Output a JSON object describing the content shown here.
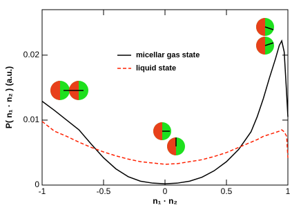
{
  "chart_data": {
    "type": "line",
    "xlabel": "n₁ · n₂",
    "ylabel": "P( n₁ · n₂ )  (a.u.)",
    "x": [
      -1,
      -0.9,
      -0.8,
      -0.7,
      -0.6,
      -0.5,
      -0.4,
      -0.3,
      -0.2,
      -0.1,
      0,
      0.1,
      0.2,
      0.3,
      0.4,
      0.5,
      0.6,
      0.7,
      0.75,
      0.8,
      0.85,
      0.9,
      0.93,
      0.95,
      0.97,
      0.99,
      1
    ],
    "series": [
      {
        "name": "micellar gas state",
        "color": "#000000",
        "dash": false,
        "values": [
          0.0129,
          0.0115,
          0.01,
          0.0085,
          0.0063,
          0.0042,
          0.0025,
          0.0013,
          0.0006,
          0.0003,
          0.0002,
          0.0003,
          0.0006,
          0.0012,
          0.0022,
          0.0036,
          0.0055,
          0.0082,
          0.0105,
          0.0133,
          0.0165,
          0.0195,
          0.0215,
          0.0222,
          0.0205,
          0.014,
          0.0105
        ]
      },
      {
        "name": "liquid state",
        "color": "#ff2000",
        "dash": true,
        "values": [
          0.0098,
          0.0083,
          0.0075,
          0.0066,
          0.0058,
          0.0051,
          0.0045,
          0.004,
          0.0036,
          0.0034,
          0.0032,
          0.0033,
          0.0036,
          0.0039,
          0.0044,
          0.005,
          0.0058,
          0.0066,
          0.007,
          0.0075,
          0.0078,
          0.0081,
          0.0083,
          0.0085,
          0.0082,
          0.0075,
          0.0042
        ]
      }
    ],
    "xlim": [
      -1,
      1
    ],
    "ylim": [
      0,
      0.027
    ],
    "xticks": [
      -1,
      -0.5,
      0,
      0.5,
      1
    ],
    "yticks": [
      0,
      0.01,
      0.02
    ]
  }
}
